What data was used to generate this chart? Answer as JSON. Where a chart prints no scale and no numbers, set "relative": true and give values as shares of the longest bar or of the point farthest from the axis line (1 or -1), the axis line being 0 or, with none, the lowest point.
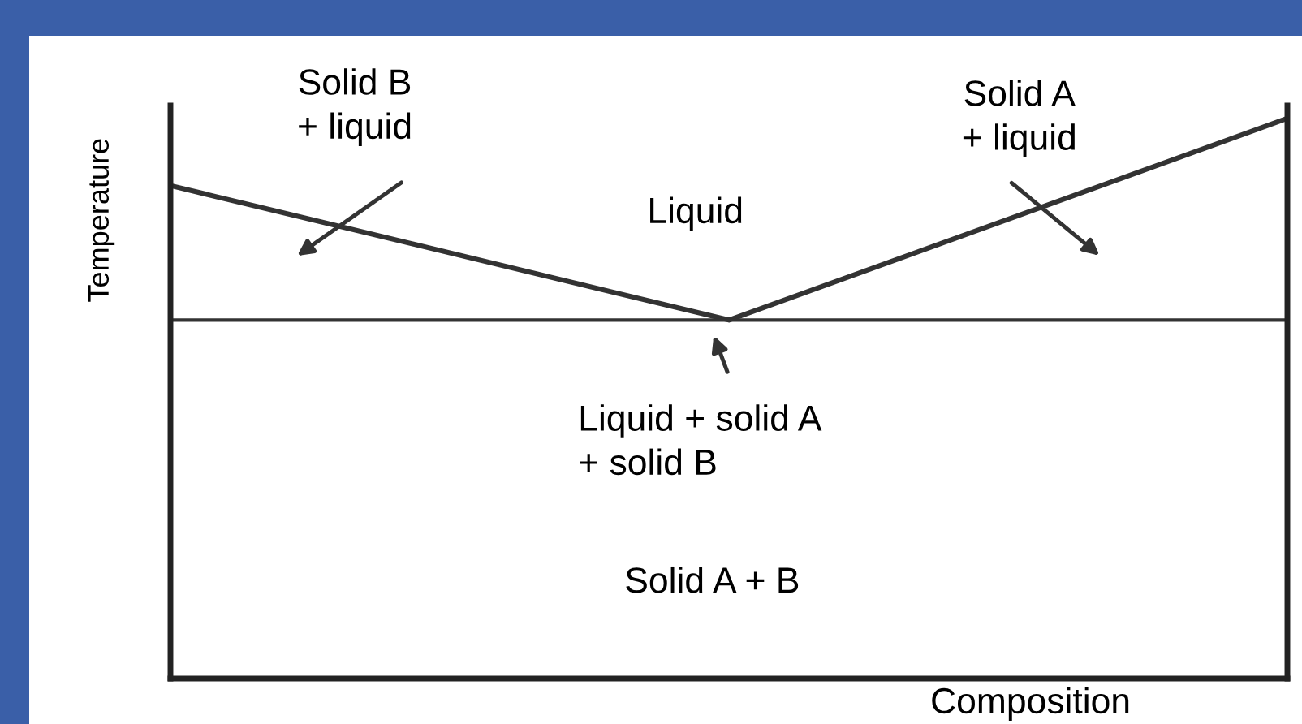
{
  "chart_data": {
    "type": "line",
    "relative": true,
    "xlabel": "Composition",
    "ylabel": "Temperature",
    "categories": [
      null,
      null,
      null
    ],
    "series": [
      {
        "color": "#333333",
        "values": [
          0.88,
          0.64,
          1.0
        ]
      }
    ],
    "ref_lines": [
      {
        "axis": "y",
        "value": 0.64,
        "color": "#333333"
      }
    ],
    "annotations": [
      "Solid B\n+ liquid",
      "Solid A\n+ liquid",
      "Liquid",
      "Liquid + solid A\n+ solid B",
      "Solid A + B"
    ],
    "grid": false,
    "legend": false,
    "marker": "none",
    "line_style": "solid"
  }
}
